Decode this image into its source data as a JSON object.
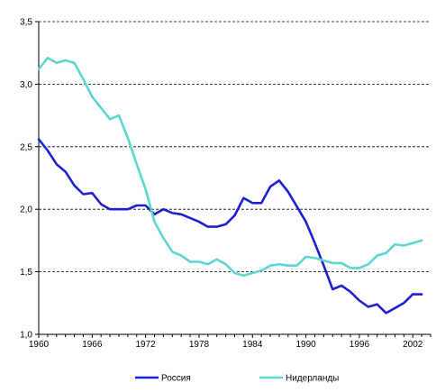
{
  "chart_data": {
    "type": "line",
    "title": "",
    "xlabel": "",
    "ylabel": "",
    "xlim": [
      1960,
      2004
    ],
    "ylim": [
      1.0,
      3.5
    ],
    "xticks": [
      1960,
      1966,
      1972,
      1978,
      1984,
      1990,
      1996,
      2002
    ],
    "yticks": [
      1.0,
      1.5,
      2.0,
      2.5,
      3.0,
      3.5
    ],
    "ytick_labels": [
      "1,0",
      "1,5",
      "2,0",
      "2,5",
      "3,0",
      "3,5"
    ],
    "xtick_labels": [
      "1960",
      "1966",
      "1972",
      "1978",
      "1984",
      "1990",
      "1996",
      "2002"
    ],
    "grid": "horizontal dashed",
    "legend_position": "bottom",
    "x": [
      1960,
      1961,
      1962,
      1963,
      1964,
      1965,
      1966,
      1967,
      1968,
      1969,
      1970,
      1971,
      1972,
      1973,
      1974,
      1975,
      1976,
      1977,
      1978,
      1979,
      1980,
      1981,
      1982,
      1983,
      1984,
      1985,
      1986,
      1987,
      1988,
      1989,
      1990,
      1991,
      1992,
      1993,
      1994,
      1995,
      1996,
      1997,
      1998,
      1999,
      2000,
      2001,
      2002,
      2003
    ],
    "series": [
      {
        "name": "Россия",
        "color": "#1f1fd0",
        "values": [
          2.56,
          2.47,
          2.36,
          2.3,
          2.19,
          2.12,
          2.13,
          2.04,
          2.0,
          2.0,
          2.0,
          2.03,
          2.03,
          1.96,
          2.0,
          1.97,
          1.96,
          1.93,
          1.9,
          1.86,
          1.86,
          1.88,
          1.95,
          2.09,
          2.05,
          2.05,
          2.18,
          2.23,
          2.14,
          2.02,
          1.9,
          1.73,
          1.55,
          1.36,
          1.39,
          1.34,
          1.27,
          1.22,
          1.24,
          1.17,
          1.21,
          1.25,
          1.32,
          1.32
        ]
      },
      {
        "name": "Нидерланды",
        "color": "#5cd6d0",
        "values": [
          3.12,
          3.21,
          3.17,
          3.19,
          3.17,
          3.04,
          2.9,
          2.81,
          2.72,
          2.75,
          2.57,
          2.36,
          2.16,
          1.9,
          1.77,
          1.66,
          1.63,
          1.58,
          1.58,
          1.56,
          1.6,
          1.56,
          1.49,
          1.47,
          1.49,
          1.51,
          1.55,
          1.56,
          1.55,
          1.55,
          1.62,
          1.61,
          1.59,
          1.57,
          1.57,
          1.53,
          1.53,
          1.56,
          1.63,
          1.65,
          1.72,
          1.71,
          1.73,
          1.75
        ]
      }
    ]
  }
}
